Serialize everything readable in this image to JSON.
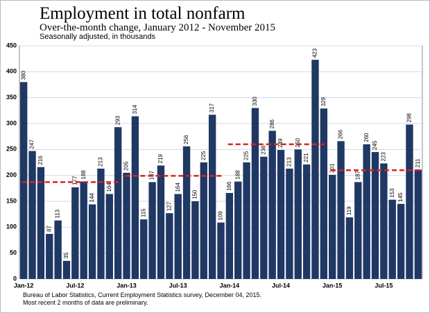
{
  "chart_data": {
    "type": "bar",
    "title": "Employment in total nonfarm",
    "subtitle": "Over-the-month change, January 2012 - November 2015",
    "y_label": "Seasonally adjusted, in thousands",
    "footnotes": [
      "Bureau of Labor Statistics, Current Employment Statistics survey, December 04, 2015.",
      "Most recent 2 months of data are preliminary."
    ],
    "categories": [
      "Jan-12",
      null,
      null,
      null,
      null,
      null,
      "Jul-12",
      null,
      null,
      null,
      null,
      null,
      "Jan-13",
      null,
      null,
      null,
      null,
      null,
      "Jul-13",
      null,
      null,
      null,
      null,
      null,
      "Jan-14",
      null,
      null,
      null,
      null,
      null,
      "Jul-14",
      null,
      null,
      null,
      null,
      null,
      "Jan-15",
      null,
      null,
      null,
      null,
      null,
      "Jul-15",
      null,
      null,
      null,
      null
    ],
    "values": [
      380,
      247,
      216,
      87,
      113,
      35,
      177,
      188,
      144,
      213,
      164,
      293,
      205,
      314,
      115,
      187,
      219,
      127,
      164,
      256,
      150,
      225,
      317,
      109,
      166,
      188,
      225,
      330,
      236,
      286,
      249,
      213,
      250,
      221,
      423,
      329,
      201,
      266,
      119,
      187,
      260,
      245,
      223,
      153,
      145,
      298,
      211
    ],
    "color": "#1f3864",
    "annual_averages": [
      187,
      199,
      260,
      210
    ],
    "average_color": "#e02020",
    "ylim": [
      0,
      450
    ],
    "yticks": [
      0,
      50,
      100,
      150,
      200,
      250,
      300,
      350,
      400,
      450
    ],
    "grid": true
  }
}
